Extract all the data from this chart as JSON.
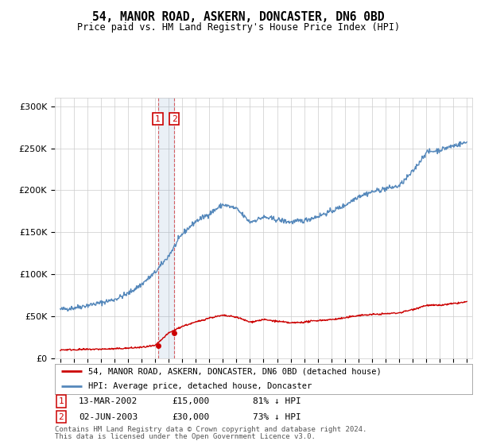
{
  "title": "54, MANOR ROAD, ASKERN, DONCASTER, DN6 0BD",
  "subtitle": "Price paid vs. HM Land Registry's House Price Index (HPI)",
  "legend_line1": "54, MANOR ROAD, ASKERN, DONCASTER, DN6 0BD (detached house)",
  "legend_line2": "HPI: Average price, detached house, Doncaster",
  "transaction1_date": 2002.2,
  "transaction1_price": 15000,
  "transaction1_label": "1",
  "transaction1_display": "13-MAR-2002",
  "transaction1_price_display": "£15,000",
  "transaction1_hpi": "81% ↓ HPI",
  "transaction2_date": 2003.42,
  "transaction2_price": 30000,
  "transaction2_label": "2",
  "transaction2_display": "02-JUN-2003",
  "transaction2_price_display": "£30,000",
  "transaction2_hpi": "73% ↓ HPI",
  "footer_line1": "Contains HM Land Registry data © Crown copyright and database right 2024.",
  "footer_line2": "This data is licensed under the Open Government Licence v3.0.",
  "hpi_color": "#5588bb",
  "price_color": "#cc0000",
  "marker_box_color": "#cc0000",
  "ylim_min": 0,
  "ylim_max": 310000,
  "xmin": 1994.6,
  "xmax": 2025.4,
  "background_color": "#ffffff",
  "grid_color": "#cccccc",
  "hpi_years": [
    1995,
    1996,
    1997,
    1998,
    1999,
    2000,
    2001,
    2002,
    2003,
    2004,
    2005,
    2006,
    2007,
    2008,
    2009,
    2010,
    2011,
    2012,
    2013,
    2014,
    2015,
    2016,
    2017,
    2018,
    2019,
    2020,
    2021,
    2022,
    2023,
    2024,
    2025
  ],
  "hpi_vals": [
    58000,
    60000,
    63000,
    66000,
    70000,
    77000,
    88000,
    102000,
    122000,
    148000,
    163000,
    172000,
    183000,
    178000,
    162000,
    168000,
    165000,
    162000,
    164000,
    169000,
    175000,
    182000,
    193000,
    198000,
    202000,
    205000,
    222000,
    245000,
    248000,
    253000,
    257000
  ],
  "red_years": [
    1995,
    1996,
    1997,
    1998,
    1999,
    2000,
    2001,
    2002,
    2003,
    2004,
    2005,
    2006,
    2007,
    2008,
    2009,
    2010,
    2011,
    2012,
    2013,
    2014,
    2015,
    2016,
    2017,
    2018,
    2019,
    2020,
    2021,
    2022,
    2023,
    2024,
    2025
  ],
  "red_vals": [
    10000,
    10200,
    10500,
    10800,
    11200,
    12000,
    13000,
    15000,
    30000,
    38000,
    43000,
    48000,
    51000,
    49000,
    43000,
    46000,
    44000,
    42000,
    43000,
    45000,
    46000,
    48000,
    51000,
    52000,
    53000,
    54000,
    58000,
    63000,
    63000,
    65000,
    67000
  ]
}
